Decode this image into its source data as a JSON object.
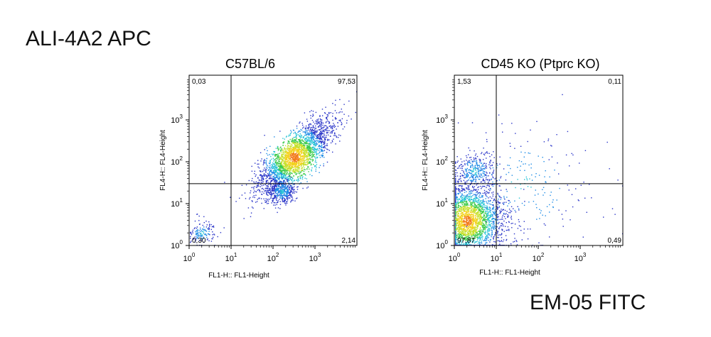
{
  "header_label": "ALI-4A2 APC",
  "footer_label": "EM-05 FITC",
  "chart_data": [
    {
      "type": "scatter",
      "title": "C57BL/6",
      "xlabel": "FL1-H:: FL1-Height",
      "ylabel": "FL4-H:: FL4-Height",
      "x_scale": "log",
      "y_scale": "log",
      "xlim": [
        1,
        10000
      ],
      "ylim": [
        1,
        10000
      ],
      "x_ticks": [
        1,
        10,
        100,
        1000
      ],
      "y_ticks": [
        1,
        10,
        100,
        1000
      ],
      "gate_x": 10,
      "gate_y": 30,
      "quadrants": {
        "upper_left": "0,03",
        "upper_right": "97,53",
        "lower_left": "0,30",
        "lower_right": "2,14"
      },
      "populations": [
        {
          "center_x": 320,
          "center_y": 130,
          "spread": "large",
          "share": 0.9753
        },
        {
          "center_x": 160,
          "center_y": 20,
          "spread": "small",
          "share": 0.0214
        },
        {
          "center_x": 2,
          "center_y": 2,
          "spread": "small",
          "share": 0.003
        }
      ]
    },
    {
      "type": "scatter",
      "title": "CD45 KO (Ptprc KO)",
      "xlabel": "FL1-H:: FL1-Height",
      "ylabel": "FL4-H:: FL4-Height",
      "x_scale": "log",
      "y_scale": "log",
      "xlim": [
        1,
        10000
      ],
      "ylim": [
        1,
        10000
      ],
      "x_ticks": [
        1,
        10,
        100,
        1000
      ],
      "y_ticks": [
        1,
        10,
        100,
        1000
      ],
      "gate_x": 10,
      "gate_y": 30,
      "quadrants": {
        "upper_left": "1,53",
        "upper_right": "0,11",
        "lower_left": "97,87",
        "lower_right": "0,49"
      },
      "populations": [
        {
          "center_x": 2,
          "center_y": 4,
          "spread": "large",
          "share": 0.9787
        },
        {
          "center_x": 3,
          "center_y": 60,
          "spread": "medium",
          "share": 0.0153
        },
        {
          "center_x": 40,
          "center_y": 25,
          "spread": "wide",
          "share": 0.006
        }
      ]
    }
  ],
  "colors": {
    "density_scale": [
      "#2a35c8",
      "#1e8ce6",
      "#27c4d6",
      "#3ccb4a",
      "#c6e02c",
      "#f3d21c",
      "#f27a1a",
      "#d81d14"
    ],
    "gate_line": "#000000",
    "axis": "#000000"
  }
}
